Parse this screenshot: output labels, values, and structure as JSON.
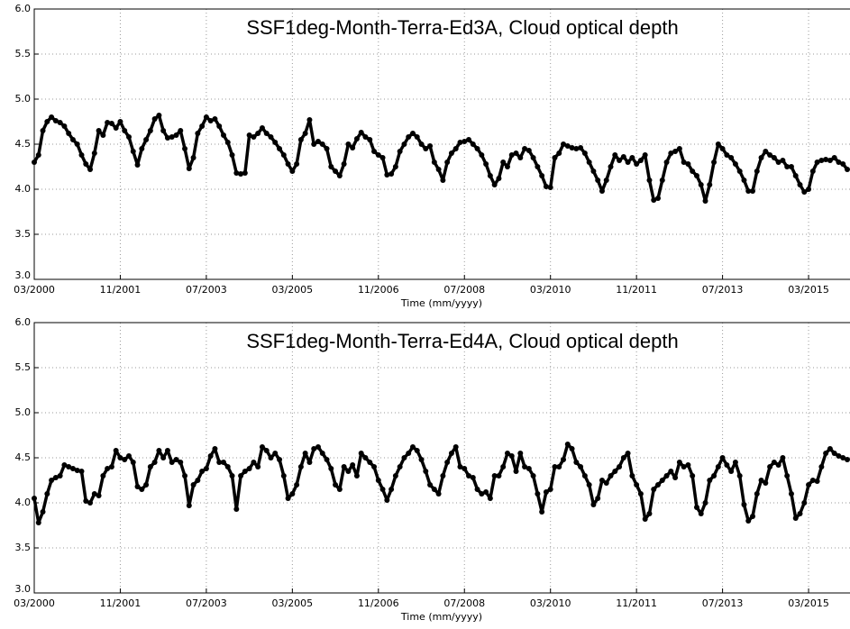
{
  "chart_data": [
    {
      "type": "line",
      "title": "SSF1deg-Month-Terra-Ed3A, Cloud optical depth",
      "xlabel": "Time (mm/yyyy)",
      "x": [
        "03/2000",
        "04/2000",
        "05/2000",
        "06/2000",
        "07/2000",
        "08/2000",
        "09/2000",
        "10/2000",
        "11/2000",
        "12/2000",
        "01/2001",
        "02/2001",
        "03/2001",
        "04/2001",
        "05/2001",
        "06/2001",
        "07/2001",
        "08/2001",
        "09/2001",
        "10/2001",
        "11/2001",
        "12/2001",
        "01/2002",
        "02/2002",
        "03/2002",
        "04/2002",
        "05/2002",
        "06/2002",
        "07/2002",
        "08/2002",
        "09/2002",
        "10/2002",
        "11/2002",
        "12/2002",
        "01/2003",
        "02/2003",
        "03/2003",
        "04/2003",
        "05/2003",
        "06/2003",
        "07/2003",
        "08/2003",
        "09/2003",
        "10/2003",
        "11/2003",
        "12/2003",
        "01/2004",
        "02/2004",
        "03/2004",
        "04/2004",
        "05/2004",
        "06/2004",
        "07/2004",
        "08/2004",
        "09/2004",
        "10/2004",
        "11/2004",
        "12/2004",
        "01/2005",
        "02/2005",
        "03/2005",
        "04/2005",
        "05/2005",
        "06/2005",
        "07/2005",
        "08/2005",
        "09/2005",
        "10/2005",
        "11/2005",
        "12/2005",
        "01/2006",
        "02/2006",
        "03/2006",
        "04/2006",
        "05/2006",
        "06/2006",
        "07/2006",
        "08/2006",
        "09/2006",
        "10/2006",
        "11/2006",
        "12/2006",
        "01/2007",
        "02/2007",
        "03/2007",
        "04/2007",
        "05/2007",
        "06/2007",
        "07/2007",
        "08/2007",
        "09/2007",
        "10/2007",
        "11/2007",
        "12/2007",
        "01/2008",
        "02/2008",
        "03/2008",
        "04/2008",
        "05/2008",
        "06/2008",
        "07/2008",
        "08/2008",
        "09/2008",
        "10/2008",
        "11/2008",
        "12/2008",
        "01/2009",
        "02/2009",
        "03/2009",
        "04/2009",
        "05/2009",
        "06/2009",
        "07/2009",
        "08/2009",
        "09/2009",
        "10/2009",
        "11/2009",
        "12/2009",
        "01/2010",
        "02/2010",
        "03/2010",
        "04/2010",
        "05/2010",
        "06/2010",
        "07/2010",
        "08/2010",
        "09/2010",
        "10/2010",
        "11/2010",
        "12/2010",
        "01/2011",
        "02/2011",
        "03/2011",
        "04/2011",
        "05/2011",
        "06/2011",
        "07/2011",
        "08/2011",
        "09/2011",
        "10/2011",
        "11/2011",
        "12/2011",
        "01/2012",
        "02/2012",
        "03/2012",
        "04/2012",
        "05/2012",
        "06/2012",
        "07/2012",
        "08/2012",
        "09/2012",
        "10/2012",
        "11/2012",
        "12/2012",
        "01/2013",
        "02/2013",
        "03/2013",
        "04/2013",
        "05/2013",
        "06/2013",
        "07/2013",
        "08/2013",
        "09/2013",
        "10/2013",
        "11/2013",
        "12/2013",
        "01/2014",
        "02/2014",
        "03/2014",
        "04/2014",
        "05/2014",
        "06/2014",
        "07/2014",
        "08/2014",
        "09/2014",
        "10/2014",
        "11/2014",
        "12/2014",
        "01/2015",
        "02/2015",
        "03/2015",
        "04/2015",
        "05/2015",
        "06/2015",
        "07/2015",
        "08/2015",
        "09/2015",
        "10/2015",
        "11/2015",
        "12/2015"
      ],
      "values": [
        4.3,
        4.38,
        4.65,
        4.75,
        4.8,
        4.76,
        4.74,
        4.7,
        4.62,
        4.55,
        4.5,
        4.38,
        4.28,
        4.22,
        4.4,
        4.65,
        4.6,
        4.74,
        4.73,
        4.68,
        4.75,
        4.65,
        4.58,
        4.42,
        4.27,
        4.45,
        4.55,
        4.65,
        4.78,
        4.82,
        4.65,
        4.57,
        4.58,
        4.6,
        4.65,
        4.45,
        4.23,
        4.35,
        4.62,
        4.7,
        4.8,
        4.76,
        4.78,
        4.7,
        4.6,
        4.52,
        4.38,
        4.18,
        4.17,
        4.18,
        4.6,
        4.58,
        4.62,
        4.68,
        4.62,
        4.58,
        4.52,
        4.45,
        4.38,
        4.28,
        4.2,
        4.28,
        4.55,
        4.62,
        4.77,
        4.5,
        4.53,
        4.5,
        4.45,
        4.25,
        4.2,
        4.15,
        4.28,
        4.5,
        4.46,
        4.56,
        4.63,
        4.58,
        4.55,
        4.42,
        4.38,
        4.35,
        4.16,
        4.17,
        4.25,
        4.42,
        4.5,
        4.58,
        4.62,
        4.58,
        4.5,
        4.45,
        4.48,
        4.3,
        4.22,
        4.1,
        4.3,
        4.4,
        4.45,
        4.52,
        4.53,
        4.55,
        4.5,
        4.45,
        4.38,
        4.28,
        4.15,
        4.05,
        4.12,
        4.3,
        4.25,
        4.38,
        4.4,
        4.35,
        4.45,
        4.43,
        4.35,
        4.25,
        4.15,
        4.03,
        4.02,
        4.35,
        4.4,
        4.5,
        4.48,
        4.46,
        4.45,
        4.46,
        4.4,
        4.3,
        4.2,
        4.1,
        3.98,
        4.1,
        4.25,
        4.38,
        4.32,
        4.36,
        4.3,
        4.35,
        4.28,
        4.32,
        4.38,
        4.1,
        3.88,
        3.9,
        4.1,
        4.3,
        4.4,
        4.42,
        4.45,
        4.3,
        4.28,
        4.2,
        4.15,
        4.05,
        3.87,
        4.05,
        4.3,
        4.5,
        4.45,
        4.38,
        4.35,
        4.28,
        4.2,
        4.1,
        3.98,
        3.98,
        4.2,
        4.35,
        4.42,
        4.38,
        4.35,
        4.3,
        4.32,
        4.25,
        4.25,
        4.15,
        4.05,
        3.97,
        4.0,
        4.2,
        4.3,
        4.32,
        4.33,
        4.32,
        4.35,
        4.3,
        4.28,
        4.22
      ],
      "color": "#000000",
      "xlim": [
        "03/2000",
        "12/2015"
      ],
      "xticks": [
        "03/2000",
        "11/2001",
        "07/2003",
        "03/2005",
        "11/2006",
        "07/2008",
        "03/2010",
        "11/2011",
        "07/2013",
        "03/2015"
      ],
      "ylim": [
        3,
        6
      ],
      "yticks": [
        {
          "value": 3,
          "label": "3.0"
        },
        {
          "value": 3.5,
          "label": "3.5"
        },
        {
          "value": 4,
          "label": "4.0"
        },
        {
          "value": 4.5,
          "label": "4.5"
        },
        {
          "value": 5,
          "label": "5.0"
        },
        {
          "value": 5.5,
          "label": "5.5"
        },
        {
          "value": 6,
          "label": "6.0"
        }
      ],
      "grid": true
    },
    {
      "type": "line",
      "title": "SSF1deg-Month-Terra-Ed4A, Cloud optical depth",
      "xlabel": "Time (mm/yyyy)",
      "x": [
        "03/2000",
        "04/2000",
        "05/2000",
        "06/2000",
        "07/2000",
        "08/2000",
        "09/2000",
        "10/2000",
        "11/2000",
        "12/2000",
        "01/2001",
        "02/2001",
        "03/2001",
        "04/2001",
        "05/2001",
        "06/2001",
        "07/2001",
        "08/2001",
        "09/2001",
        "10/2001",
        "11/2001",
        "12/2001",
        "01/2002",
        "02/2002",
        "03/2002",
        "04/2002",
        "05/2002",
        "06/2002",
        "07/2002",
        "08/2002",
        "09/2002",
        "10/2002",
        "11/2002",
        "12/2002",
        "01/2003",
        "02/2003",
        "03/2003",
        "04/2003",
        "05/2003",
        "06/2003",
        "07/2003",
        "08/2003",
        "09/2003",
        "10/2003",
        "11/2003",
        "12/2003",
        "01/2004",
        "02/2004",
        "03/2004",
        "04/2004",
        "05/2004",
        "06/2004",
        "07/2004",
        "08/2004",
        "09/2004",
        "10/2004",
        "11/2004",
        "12/2004",
        "01/2005",
        "02/2005",
        "03/2005",
        "04/2005",
        "05/2005",
        "06/2005",
        "07/2005",
        "08/2005",
        "09/2005",
        "10/2005",
        "11/2005",
        "12/2005",
        "01/2006",
        "02/2006",
        "03/2006",
        "04/2006",
        "05/2006",
        "06/2006",
        "07/2006",
        "08/2006",
        "09/2006",
        "10/2006",
        "11/2006",
        "12/2006",
        "01/2007",
        "02/2007",
        "03/2007",
        "04/2007",
        "05/2007",
        "06/2007",
        "07/2007",
        "08/2007",
        "09/2007",
        "10/2007",
        "11/2007",
        "12/2007",
        "01/2008",
        "02/2008",
        "03/2008",
        "04/2008",
        "05/2008",
        "06/2008",
        "07/2008",
        "08/2008",
        "09/2008",
        "10/2008",
        "11/2008",
        "12/2008",
        "01/2009",
        "02/2009",
        "03/2009",
        "04/2009",
        "05/2009",
        "06/2009",
        "07/2009",
        "08/2009",
        "09/2009",
        "10/2009",
        "11/2009",
        "12/2009",
        "01/2010",
        "02/2010",
        "03/2010",
        "04/2010",
        "05/2010",
        "06/2010",
        "07/2010",
        "08/2010",
        "09/2010",
        "10/2010",
        "11/2010",
        "12/2010",
        "01/2011",
        "02/2011",
        "03/2011",
        "04/2011",
        "05/2011",
        "06/2011",
        "07/2011",
        "08/2011",
        "09/2011",
        "10/2011",
        "11/2011",
        "12/2011",
        "01/2012",
        "02/2012",
        "03/2012",
        "04/2012",
        "05/2012",
        "06/2012",
        "07/2012",
        "08/2012",
        "09/2012",
        "10/2012",
        "11/2012",
        "12/2012",
        "01/2013",
        "02/2013",
        "03/2013",
        "04/2013",
        "05/2013",
        "06/2013",
        "07/2013",
        "08/2013",
        "09/2013",
        "10/2013",
        "11/2013",
        "12/2013",
        "01/2014",
        "02/2014",
        "03/2014",
        "04/2014",
        "05/2014",
        "06/2014",
        "07/2014",
        "08/2014",
        "09/2014",
        "10/2014",
        "11/2014",
        "12/2014",
        "01/2015",
        "02/2015",
        "03/2015",
        "04/2015",
        "05/2015",
        "06/2015",
        "07/2015",
        "08/2015",
        "09/2015",
        "10/2015",
        "11/2015",
        "12/2015"
      ],
      "values": [
        4.05,
        3.78,
        3.9,
        4.1,
        4.25,
        4.28,
        4.3,
        4.42,
        4.4,
        4.38,
        4.36,
        4.35,
        4.02,
        4.0,
        4.1,
        4.08,
        4.3,
        4.38,
        4.4,
        4.58,
        4.5,
        4.48,
        4.52,
        4.45,
        4.18,
        4.15,
        4.2,
        4.4,
        4.45,
        4.58,
        4.5,
        4.58,
        4.45,
        4.48,
        4.45,
        4.3,
        3.97,
        4.2,
        4.25,
        4.35,
        4.38,
        4.52,
        4.6,
        4.45,
        4.45,
        4.4,
        4.3,
        3.93,
        4.3,
        4.35,
        4.38,
        4.45,
        4.4,
        4.62,
        4.58,
        4.5,
        4.55,
        4.48,
        4.3,
        4.05,
        4.1,
        4.2,
        4.4,
        4.55,
        4.45,
        4.6,
        4.62,
        4.55,
        4.48,
        4.38,
        4.2,
        4.15,
        4.4,
        4.35,
        4.42,
        4.3,
        4.55,
        4.5,
        4.45,
        4.4,
        4.25,
        4.15,
        4.03,
        4.15,
        4.3,
        4.4,
        4.5,
        4.55,
        4.62,
        4.58,
        4.48,
        4.35,
        4.2,
        4.15,
        4.1,
        4.3,
        4.45,
        4.55,
        4.62,
        4.4,
        4.38,
        4.3,
        4.28,
        4.15,
        4.1,
        4.12,
        4.05,
        4.3,
        4.3,
        4.4,
        4.55,
        4.52,
        4.35,
        4.55,
        4.4,
        4.38,
        4.3,
        4.1,
        3.9,
        4.12,
        4.15,
        4.4,
        4.4,
        4.48,
        4.65,
        4.6,
        4.45,
        4.4,
        4.3,
        4.2,
        3.98,
        4.05,
        4.25,
        4.22,
        4.3,
        4.35,
        4.4,
        4.5,
        4.55,
        4.3,
        4.2,
        4.1,
        3.82,
        3.88,
        4.15,
        4.2,
        4.25,
        4.3,
        4.35,
        4.28,
        4.45,
        4.4,
        4.42,
        4.3,
        3.95,
        3.88,
        4.0,
        4.25,
        4.3,
        4.4,
        4.5,
        4.42,
        4.35,
        4.45,
        4.3,
        3.98,
        3.8,
        3.85,
        4.1,
        4.25,
        4.22,
        4.4,
        4.45,
        4.42,
        4.5,
        4.3,
        4.1,
        3.83,
        3.88,
        4.0,
        4.2,
        4.25,
        4.24,
        4.4,
        4.55,
        4.6,
        4.55,
        4.52,
        4.5,
        4.48
      ],
      "color": "#000000",
      "xlim": [
        "03/2000",
        "12/2015"
      ],
      "xticks": [
        "03/2000",
        "11/2001",
        "07/2003",
        "03/2005",
        "11/2006",
        "07/2008",
        "03/2010",
        "11/2011",
        "07/2013",
        "03/2015"
      ],
      "ylim": [
        3,
        6
      ],
      "yticks": [
        {
          "value": 3,
          "label": "3.0"
        },
        {
          "value": 3.5,
          "label": "3.5"
        },
        {
          "value": 4,
          "label": "4.0"
        },
        {
          "value": 4.5,
          "label": "4.5"
        },
        {
          "value": 5,
          "label": "5.0"
        },
        {
          "value": 5.5,
          "label": "5.5"
        },
        {
          "value": 6,
          "label": "6.0"
        }
      ],
      "grid": true
    }
  ]
}
